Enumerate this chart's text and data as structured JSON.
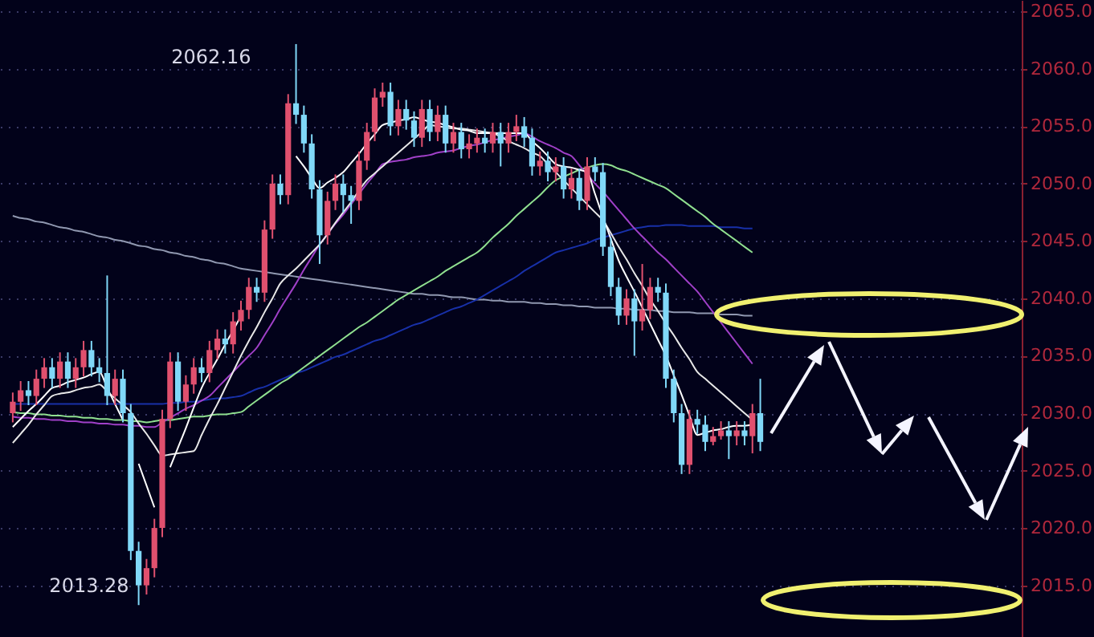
{
  "chart_data": {
    "type": "candlestick",
    "categories": [
      null,
      null,
      null,
      null,
      null,
      null,
      null,
      null,
      null,
      null,
      null,
      null,
      null,
      null,
      null,
      null,
      null,
      null,
      null,
      null,
      null,
      null,
      null,
      null,
      null,
      null,
      null,
      null,
      null,
      null,
      null,
      null,
      null,
      null,
      null,
      null,
      null,
      null,
      null,
      null,
      null,
      null,
      null,
      null,
      null,
      null,
      null,
      null,
      null,
      null,
      null,
      null,
      null,
      null,
      null,
      null,
      null,
      null,
      null,
      null,
      null,
      null,
      null,
      null,
      null,
      null,
      null,
      null,
      null,
      null,
      null,
      null,
      null,
      null,
      null,
      null,
      null,
      null,
      null,
      null,
      null,
      null,
      null,
      null,
      null,
      null,
      null,
      null,
      null,
      null,
      null,
      null,
      null,
      null,
      null,
      null
    ],
    "ohlc": [
      [
        2030,
        2031.8,
        2029.2,
        2031
      ],
      [
        2031,
        2032.8,
        2030.2,
        2032
      ],
      [
        2032,
        2032.8,
        2030.7,
        2031.5
      ],
      [
        2031.5,
        2033.8,
        2030.7,
        2033
      ],
      [
        2033,
        2034.8,
        2032.2,
        2034
      ],
      [
        2034,
        2034.8,
        2032.2,
        2033
      ],
      [
        2033,
        2035.3,
        2032.2,
        2034.5
      ],
      [
        2034.5,
        2035.3,
        2032.2,
        2033
      ],
      [
        2033,
        2034.8,
        2032.2,
        2034
      ],
      [
        2034,
        2036.3,
        2033.2,
        2035.5
      ],
      [
        2035.5,
        2036.3,
        2033.2,
        2034
      ],
      [
        2034,
        2034.8,
        2032.7,
        2033.5
      ],
      [
        2033.5,
        2042,
        2030.7,
        2031.5
      ],
      [
        2031.5,
        2033.8,
        2030.7,
        2033
      ],
      [
        2033,
        2033.8,
        2029.2,
        2030
      ],
      [
        2030,
        2030.8,
        2017.2,
        2018
      ],
      [
        2018,
        2018.8,
        2013.28,
        2015
      ],
      [
        2015,
        2017.3,
        2014.2,
        2016.5
      ],
      [
        2016.5,
        2020.8,
        2015.7,
        2020
      ],
      [
        2020,
        2030.3,
        2019.2,
        2029.5
      ],
      [
        2029.5,
        2035.3,
        2028.7,
        2034.5
      ],
      [
        2034.5,
        2035.3,
        2030.2,
        2031
      ],
      [
        2031,
        2033.3,
        2030.2,
        2032.5
      ],
      [
        2032.5,
        2034.8,
        2031.7,
        2034
      ],
      [
        2034,
        2034.8,
        2032.7,
        2033.5
      ],
      [
        2033.5,
        2036.3,
        2032.7,
        2035.5
      ],
      [
        2035.5,
        2037.3,
        2034.7,
        2036.5
      ],
      [
        2036.5,
        2037.3,
        2035.2,
        2036
      ],
      [
        2036,
        2038.8,
        2035.2,
        2038
      ],
      [
        2038,
        2039.8,
        2037.2,
        2039
      ],
      [
        2039,
        2041.8,
        2038.2,
        2041
      ],
      [
        2041,
        2041.8,
        2039.7,
        2040.5
      ],
      [
        2040.5,
        2046.8,
        2039.7,
        2046
      ],
      [
        2046,
        2050.8,
        2045.2,
        2050
      ],
      [
        2050,
        2050.8,
        2048.2,
        2049
      ],
      [
        2049,
        2057.8,
        2048.2,
        2057
      ],
      [
        2057,
        2062.16,
        2055.2,
        2056
      ],
      [
        2056,
        2056.8,
        2052.7,
        2053.5
      ],
      [
        2053.5,
        2054.3,
        2048.7,
        2049.5
      ],
      [
        2049.5,
        2050.3,
        2043,
        2045.5
      ],
      [
        2045.5,
        2049.3,
        2044.7,
        2048.5
      ],
      [
        2048.5,
        2050.8,
        2047.7,
        2050
      ],
      [
        2050,
        2050.8,
        2047.5,
        2049
      ],
      [
        2049,
        2049.8,
        2046.5,
        2048.5
      ],
      [
        2048.5,
        2052.8,
        2047.7,
        2052
      ],
      [
        2052,
        2055.3,
        2051.2,
        2054.5
      ],
      [
        2054.5,
        2058.3,
        2053.7,
        2057.5
      ],
      [
        2057.5,
        2058.8,
        2056.7,
        2058
      ],
      [
        2058,
        2058.8,
        2054.2,
        2055
      ],
      [
        2055,
        2057.3,
        2054.2,
        2056.5
      ],
      [
        2056.5,
        2057.3,
        2054.7,
        2055.5
      ],
      [
        2055.5,
        2056.3,
        2053.2,
        2054
      ],
      [
        2054,
        2057.3,
        2053.2,
        2056.5
      ],
      [
        2056.5,
        2057.3,
        2053.7,
        2054.5
      ],
      [
        2054.5,
        2056.8,
        2053.7,
        2056
      ],
      [
        2056,
        2056.8,
        2052.7,
        2053.5
      ],
      [
        2053.5,
        2055.3,
        2052.7,
        2054.5
      ],
      [
        2054.5,
        2055.3,
        2052.2,
        2053
      ],
      [
        2053,
        2054.3,
        2052.2,
        2053.5
      ],
      [
        2053.5,
        2054.8,
        2052.7,
        2054
      ],
      [
        2054,
        2054.8,
        2052.7,
        2053.5
      ],
      [
        2053.5,
        2055.3,
        2052.7,
        2054.5
      ],
      [
        2054.5,
        2055.3,
        2051.5,
        2053.5
      ],
      [
        2053.5,
        2055.3,
        2052.7,
        2054.5
      ],
      [
        2054.5,
        2056,
        2053.7,
        2055
      ],
      [
        2055,
        2055.8,
        2053.2,
        2054
      ],
      [
        2054,
        2054.8,
        2050.7,
        2051.5
      ],
      [
        2051.5,
        2052.8,
        2050.7,
        2052
      ],
      [
        2052,
        2052.8,
        2050.2,
        2051
      ],
      [
        2051,
        2052.3,
        2050.2,
        2051.5
      ],
      [
        2051.5,
        2052.3,
        2048.7,
        2049.5
      ],
      [
        2049.5,
        2051.3,
        2048.7,
        2050.5
      ],
      [
        2050.5,
        2051.3,
        2047.7,
        2048.5
      ],
      [
        2048.5,
        2052.3,
        2047.7,
        2051.5
      ],
      [
        2051.5,
        2052.3,
        2050.2,
        2051
      ],
      [
        2051,
        2051.8,
        2043.7,
        2044.5
      ],
      [
        2044.5,
        2045.3,
        2040.2,
        2041
      ],
      [
        2041,
        2041.8,
        2037.7,
        2038.5
      ],
      [
        2038.5,
        2040.8,
        2037.7,
        2040
      ],
      [
        2040,
        2040.8,
        2035,
        2038
      ],
      [
        2038,
        2043,
        2037.2,
        2039
      ],
      [
        2039,
        2041.8,
        2038.2,
        2041
      ],
      [
        2041,
        2041.8,
        2039.7,
        2040.5
      ],
      [
        2040.5,
        2041.3,
        2032.2,
        2033
      ],
      [
        2033,
        2033.8,
        2029.2,
        2030
      ],
      [
        2030,
        2030.8,
        2024.7,
        2025.5
      ],
      [
        2025.5,
        2030.3,
        2024.7,
        2029.5
      ],
      [
        2029.5,
        2030.3,
        2028.2,
        2029
      ],
      [
        2029,
        2029.8,
        2026.7,
        2027.5
      ],
      [
        2027.5,
        2028.8,
        2027.2,
        2028
      ],
      [
        2028,
        2029.3,
        2027.7,
        2028.5
      ],
      [
        2028.5,
        2029.3,
        2026,
        2028
      ],
      [
        2028,
        2029.3,
        2027.2,
        2028.5
      ],
      [
        2028.5,
        2029.3,
        2027.2,
        2028
      ],
      [
        2028,
        2030.8,
        2026.5,
        2030
      ],
      [
        2030,
        2033,
        2026.7,
        2027.5
      ]
    ],
    "colors": [
      "#e0506e",
      "#e0506e",
      "#80d8f8",
      "#e0506e",
      "#e0506e",
      "#80d8f8",
      "#e0506e",
      "#80d8f8",
      "#e0506e",
      "#e0506e",
      "#80d8f8",
      "#80d8f8",
      "#80d8f8",
      "#e0506e",
      "#80d8f8",
      "#80d8f8",
      "#80d8f8",
      "#e0506e",
      "#e0506e",
      "#e0506e",
      "#e0506e",
      "#80d8f8",
      "#e0506e",
      "#e0506e",
      "#80d8f8",
      "#e0506e",
      "#e0506e",
      "#80d8f8",
      "#e0506e",
      "#e0506e",
      "#e0506e",
      "#80d8f8",
      "#e0506e",
      "#e0506e",
      "#80d8f8",
      "#e0506e",
      "#80d8f8",
      "#80d8f8",
      "#80d8f8",
      "#80d8f8",
      "#e0506e",
      "#e0506e",
      "#80d8f8",
      "#80d8f8",
      "#e0506e",
      "#e0506e",
      "#e0506e",
      "#e0506e",
      "#80d8f8",
      "#e0506e",
      "#80d8f8",
      "#80d8f8",
      "#e0506e",
      "#80d8f8",
      "#e0506e",
      "#80d8f8",
      "#e0506e",
      "#80d8f8",
      "#e0506e",
      "#e0506e",
      "#80d8f8",
      "#e0506e",
      "#80d8f8",
      "#e0506e",
      "#e0506e",
      "#80d8f8",
      "#80d8f8",
      "#e0506e",
      "#80d8f8",
      "#e0506e",
      "#80d8f8",
      "#e0506e",
      "#80d8f8",
      "#e0506e",
      "#80d8f8",
      "#80d8f8",
      "#80d8f8",
      "#80d8f8",
      "#e0506e",
      "#80d8f8",
      "#e0506e",
      "#e0506e",
      "#80d8f8",
      "#80d8f8",
      "#80d8f8",
      "#80d8f8",
      "#e0506e",
      "#80d8f8",
      "#80d8f8",
      "#e0506e",
      "#e0506e",
      "#80d8f8",
      "#e0506e",
      "#80d8f8",
      "#e0506e",
      "#80d8f8"
    ],
    "series": [
      {
        "type": "line",
        "color": "#9098b0",
        "values": [
          2047.2,
          2047.0,
          2046.9,
          2046.7,
          2046.6,
          2046.4,
          2046.2,
          2046.1,
          2045.9,
          2045.8,
          2045.6,
          2045.4,
          2045.3,
          2045.1,
          2045.0,
          2044.8,
          2044.6,
          2044.5,
          2044.3,
          2044.2,
          2044.0,
          2043.9,
          2043.7,
          2043.6,
          2043.4,
          2043.3,
          2043.1,
          2043.0,
          2042.8,
          2042.6,
          2042.5,
          2042.4,
          2042.3,
          2042.2,
          2042.1,
          2042.0,
          2041.9,
          2041.8,
          2041.7,
          2041.6,
          2041.5,
          2041.4,
          2041.3,
          2041.2,
          2041.1,
          2041.0,
          2040.9,
          2040.8,
          2040.7,
          2040.6,
          2040.5,
          2040.4,
          2040.4,
          2040.3,
          2040.3,
          2040.2,
          2040.1,
          2040.1,
          2040.0,
          2039.9,
          2039.9,
          2039.8,
          2039.8,
          2039.7,
          2039.7,
          2039.7,
          2039.6,
          2039.6,
          2039.5,
          2039.5,
          2039.4,
          2039.4,
          2039.3,
          2039.3,
          2039.2,
          2039.2,
          2039.2,
          2039.1,
          2039.1,
          2039.0,
          2039.0,
          2039.0,
          2038.9,
          2038.9,
          2038.8,
          2038.8,
          2038.8,
          2038.7,
          2038.7,
          2038.7,
          2038.6,
          2038.6,
          2038.6,
          2038.5,
          2038.5,
          null
        ]
      },
      {
        "type": "line",
        "color": "#1830a8",
        "values": [
          2030.8,
          2030.8,
          2030.8,
          2030.8,
          2030.8,
          2030.8,
          2030.8,
          2030.8,
          2030.8,
          2030.8,
          2030.8,
          2030.8,
          2030.8,
          2030.8,
          2030.8,
          2030.8,
          2030.8,
          2030.8,
          2030.8,
          2030.8,
          2030.9,
          2030.9,
          2031.0,
          2031.0,
          2031.1,
          2031.2,
          2031.3,
          2031.3,
          2031.4,
          2031.5,
          2031.8,
          2032.1,
          2032.3,
          2032.6,
          2032.9,
          2033.2,
          2033.5,
          2033.7,
          2034.0,
          2034.3,
          2034.6,
          2034.9,
          2035.1,
          2035.4,
          2035.7,
          2036.0,
          2036.3,
          2036.5,
          2036.8,
          2037.1,
          2037.4,
          2037.7,
          2037.9,
          2038.2,
          2038.5,
          2038.8,
          2039.1,
          2039.3,
          2039.6,
          2039.9,
          2040.3,
          2040.7,
          2041.1,
          2041.5,
          2041.9,
          2042.4,
          2042.8,
          2043.2,
          2043.6,
          2044.0,
          2044.2,
          2044.4,
          2044.6,
          2044.8,
          2045.1,
          2045.3,
          2045.5,
          2045.7,
          2045.9,
          2046.1,
          2046.2,
          2046.3,
          2046.3,
          2046.4,
          2046.4,
          2046.4,
          2046.3,
          2046.3,
          2046.3,
          2046.3,
          2046.2,
          2046.2,
          2046.2,
          2046.1,
          2046.1,
          null
        ]
      },
      {
        "type": "line",
        "color": "#90e090",
        "values": [
          2030.1,
          2030.0,
          2030.0,
          2029.9,
          2029.9,
          2029.8,
          2029.8,
          2029.7,
          2029.7,
          2029.6,
          2029.6,
          2029.5,
          2029.5,
          2029.4,
          2029.4,
          2029.3,
          2029.3,
          2029.2,
          2029.3,
          2029.4,
          2029.4,
          2029.5,
          2029.6,
          2029.7,
          2029.7,
          2029.8,
          2029.9,
          2029.9,
          2030.0,
          2030.1,
          2030.6,
          2031.1,
          2031.6,
          2032.1,
          2032.6,
          2033.0,
          2033.5,
          2034.0,
          2034.5,
          2035.0,
          2035.5,
          2036.0,
          2036.5,
          2037.0,
          2037.5,
          2037.9,
          2038.4,
          2038.9,
          2039.4,
          2039.9,
          2040.3,
          2040.7,
          2041.1,
          2041.5,
          2041.9,
          2042.4,
          2042.8,
          2043.2,
          2043.6,
          2044.0,
          2044.6,
          2045.3,
          2045.9,
          2046.5,
          2047.2,
          2047.8,
          2048.4,
          2049.0,
          2049.7,
          2050.3,
          2050.6,
          2050.9,
          2051.2,
          2051.4,
          2051.6,
          2051.7,
          2051.6,
          2051.3,
          2051.1,
          2050.8,
          2050.5,
          2050.2,
          2049.9,
          2049.6,
          2049.1,
          2048.6,
          2048.1,
          2047.6,
          2047.1,
          2046.5,
          2046.0,
          2045.5,
          2045.0,
          2044.5,
          2044.0,
          null
        ]
      },
      {
        "type": "line",
        "color": "#a040c8",
        "values": [
          2029.7,
          2029.6,
          2029.6,
          2029.5,
          2029.5,
          2029.4,
          2029.4,
          2029.3,
          2029.3,
          2029.2,
          2029.2,
          2029.1,
          2029.1,
          2029.0,
          2029.0,
          2028.9,
          2028.9,
          2028.8,
          2028.8,
          2029.2,
          2029.6,
          2030.0,
          2030.4,
          2030.7,
          2031.1,
          2031.5,
          2032.2,
          2032.9,
          2033.6,
          2034.3,
          2035.0,
          2035.7,
          2036.8,
          2037.9,
          2039.1,
          2040.2,
          2041.3,
          2042.5,
          2043.6,
          2044.7,
          2045.6,
          2046.5,
          2047.3,
          2048.2,
          2049.1,
          2050.0,
          2050.8,
          2051.7,
          2051.9,
          2052.0,
          2052.1,
          2052.3,
          2052.4,
          2052.5,
          2052.7,
          2052.8,
          2052.9,
          2053.1,
          2053.3,
          2053.4,
          2053.6,
          2053.8,
          2053.9,
          2054.1,
          2054.2,
          2054.4,
          2054.1,
          2053.7,
          2053.4,
          2053.1,
          2052.7,
          2052.4,
          2051.6,
          2050.8,
          2050.0,
          2049.3,
          2048.5,
          2047.7,
          2046.9,
          2046.1,
          2045.4,
          2044.7,
          2044.0,
          2043.4,
          2042.7,
          2042.0,
          2041.3,
          2040.6,
          2039.7,
          2038.8,
          2037.9,
          2037.0,
          2036.1,
          2035.2,
          2034.3,
          null
        ]
      },
      {
        "type": "line",
        "color": "#e8e8e8",
        "values": [
          2027.4,
          2028.2,
          2029.0,
          2029.9,
          2030.7,
          2031.5,
          2031.7,
          2031.8,
          2032.0,
          2032.2,
          2032.3,
          2032.5,
          2031.9,
          2031.3,
          2030.7,
          2030.1,
          2029.1,
          2028.2,
          2027.2,
          2026.3,
          2026.4,
          2026.5,
          2026.6,
          2026.7,
          2028.1,
          2029.5,
          2030.8,
          2032.2,
          2033.6,
          2035.0,
          2036.3,
          2037.5,
          2038.8,
          2040.0,
          2041.3,
          2042.0,
          2042.6,
          2043.3,
          2044.0,
          2044.7,
          2045.6,
          2046.6,
          2047.5,
          2048.4,
          2049.4,
          2050.3,
          2050.9,
          2051.5,
          2052.1,
          2052.7,
          2053.3,
          2053.9,
          2054.5,
          2055.1,
          2055.0,
          2054.9,
          2054.8,
          2054.8,
          2054.7,
          2054.6,
          2054.5,
          2054.4,
          2054.1,
          2053.7,
          2053.4,
          2053.1,
          2052.7,
          2052.4,
          2051.7,
          2051.0,
          2050.3,
          2049.6,
          2048.9,
          2048.2,
          2047.5,
          2046.8,
          2045.7,
          2044.5,
          2043.4,
          2042.2,
          2041.1,
          2039.9,
          2038.9,
          2037.8,
          2036.8,
          2035.7,
          2034.7,
          2033.6,
          2033.0,
          2032.4,
          2031.8,
          2031.2,
          2030.6,
          2030.0,
          2029.4,
          null
        ]
      },
      {
        "type": "line",
        "color": "#ffffff",
        "values": [
          2028.8,
          2029.5,
          2030.2,
          2030.8,
          2031.5,
          2032.2,
          2032.4,
          2032.7,
          2032.9,
          2033.1,
          2033.4,
          2033.6,
          2032.2,
          2030.8,
          2029.4,
          null,
          2025.6,
          2023.7,
          2021.8,
          null,
          2025.3,
          2027.0,
          2028.7,
          2030.5,
          2032.2,
          2033.5,
          2034.7,
          2036.0,
          2037.2,
          2038.5,
          null,
          null,
          null,
          null,
          null,
          null,
          2052.4,
          2051.5,
          2050.5,
          2049.6,
          2050.1,
          2050.5,
          2051.0,
          2051.8,
          2052.6,
          2053.5,
          2054.3,
          2055.1,
          2055.3,
          2055.5,
          2055.6,
          2055.8,
          2055.6,
          2055.4,
          2055.3,
          2055.1,
          2054.9,
          2054.7,
          2054.6,
          2054.4,
          2054.4,
          2054.4,
          2054.4,
          2054.4,
          2054.4,
          2054.4,
          2053.7,
          2053.1,
          2052.4,
          2051.7,
          2051.5,
          2051.4,
          2051.2,
          2051.0,
          2049.1,
          2047.1,
          2045.2,
          2043.3,
          2041.9,
          2040.6,
          2039.2,
          2037.8,
          2036.4,
          2035.0,
          2033.3,
          2031.6,
          2029.8,
          2028.1,
          2028.3,
          2028.5,
          2028.6,
          2028.8,
          2028.9,
          2028.9,
          2029.0,
          null
        ]
      }
    ],
    "annotations": [
      "2062.16",
      "2013.28"
    ],
    "ylim": [
      2010.5,
      2066
    ],
    "yticks": [
      {
        "value": 2015,
        "label": "2015.0"
      },
      {
        "value": 2020,
        "label": "2020.0"
      },
      {
        "value": 2025,
        "label": "2025.0"
      },
      {
        "value": 2030,
        "label": "2030.0"
      },
      {
        "value": 2035,
        "label": "2035.0"
      },
      {
        "value": 2040,
        "label": "2040.0"
      },
      {
        "value": 2045,
        "label": "2045.0"
      },
      {
        "value": 2050,
        "label": "2050.0"
      },
      {
        "value": 2055,
        "label": "2055.0"
      },
      {
        "value": 2060,
        "label": "2060.0"
      },
      {
        "value": 2065,
        "label": "2065.0"
      }
    ],
    "grid": "y",
    "tick_labels": "y"
  }
}
